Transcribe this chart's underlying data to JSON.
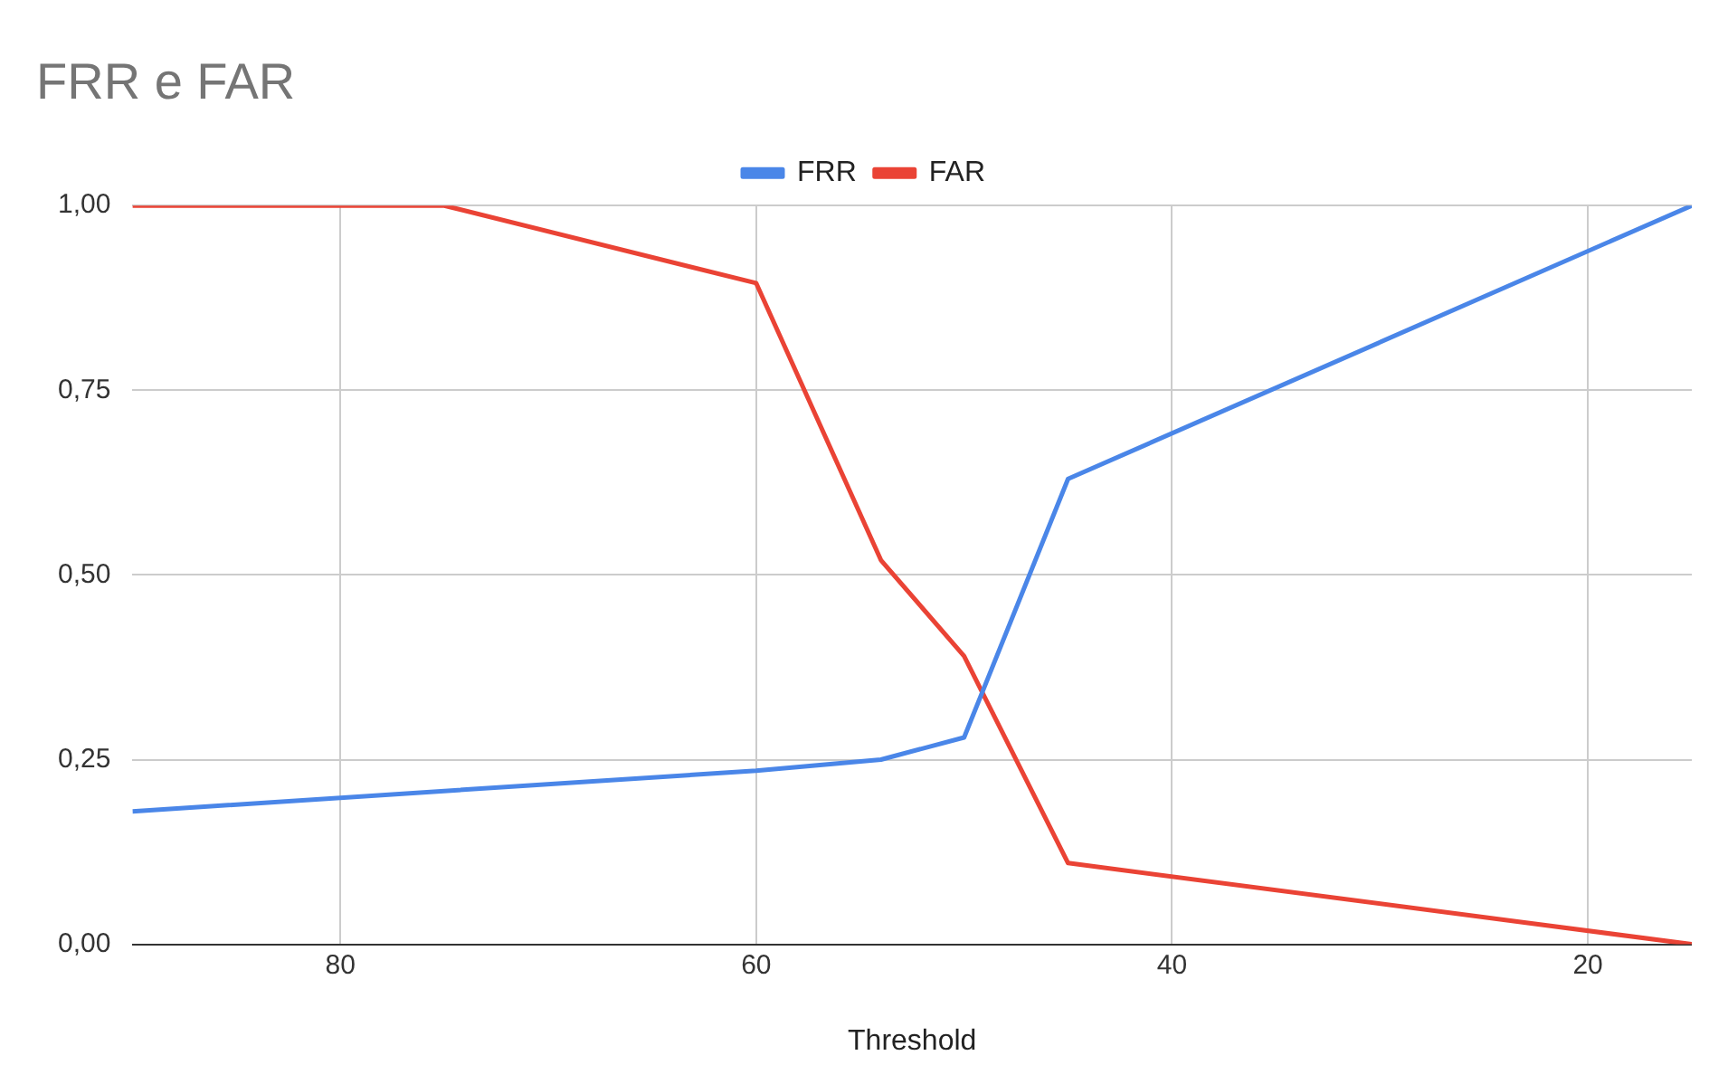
{
  "chart_data": {
    "type": "line",
    "title": "FRR e FAR",
    "xlabel": "Threshold",
    "xlim": [
      90,
      15
    ],
    "xticks": [
      80,
      60,
      40,
      20
    ],
    "ylim": [
      0,
      1
    ],
    "yticks": [
      {
        "value": 0,
        "label": "0,00"
      },
      {
        "value": 0.25,
        "label": "0,25"
      },
      {
        "value": 0.5,
        "label": "0,50"
      },
      {
        "value": 0.75,
        "label": "0,75"
      },
      {
        "value": 1,
        "label": "1,00"
      }
    ],
    "grid": true,
    "legend": "top",
    "marker": "none",
    "line_style": "solid",
    "series": [
      {
        "name": "FRR",
        "color": "#4a86e8",
        "x": [
          90,
          60,
          54,
          50,
          45,
          15
        ],
        "values": [
          0.18,
          0.235,
          0.25,
          0.28,
          0.63,
          1.0
        ]
      },
      {
        "name": "FAR",
        "color": "#ea4335",
        "x": [
          90,
          75,
          60,
          54,
          50,
          45,
          15
        ],
        "values": [
          1.0,
          1.0,
          0.895,
          0.52,
          0.39,
          0.11,
          0.0
        ]
      }
    ]
  }
}
